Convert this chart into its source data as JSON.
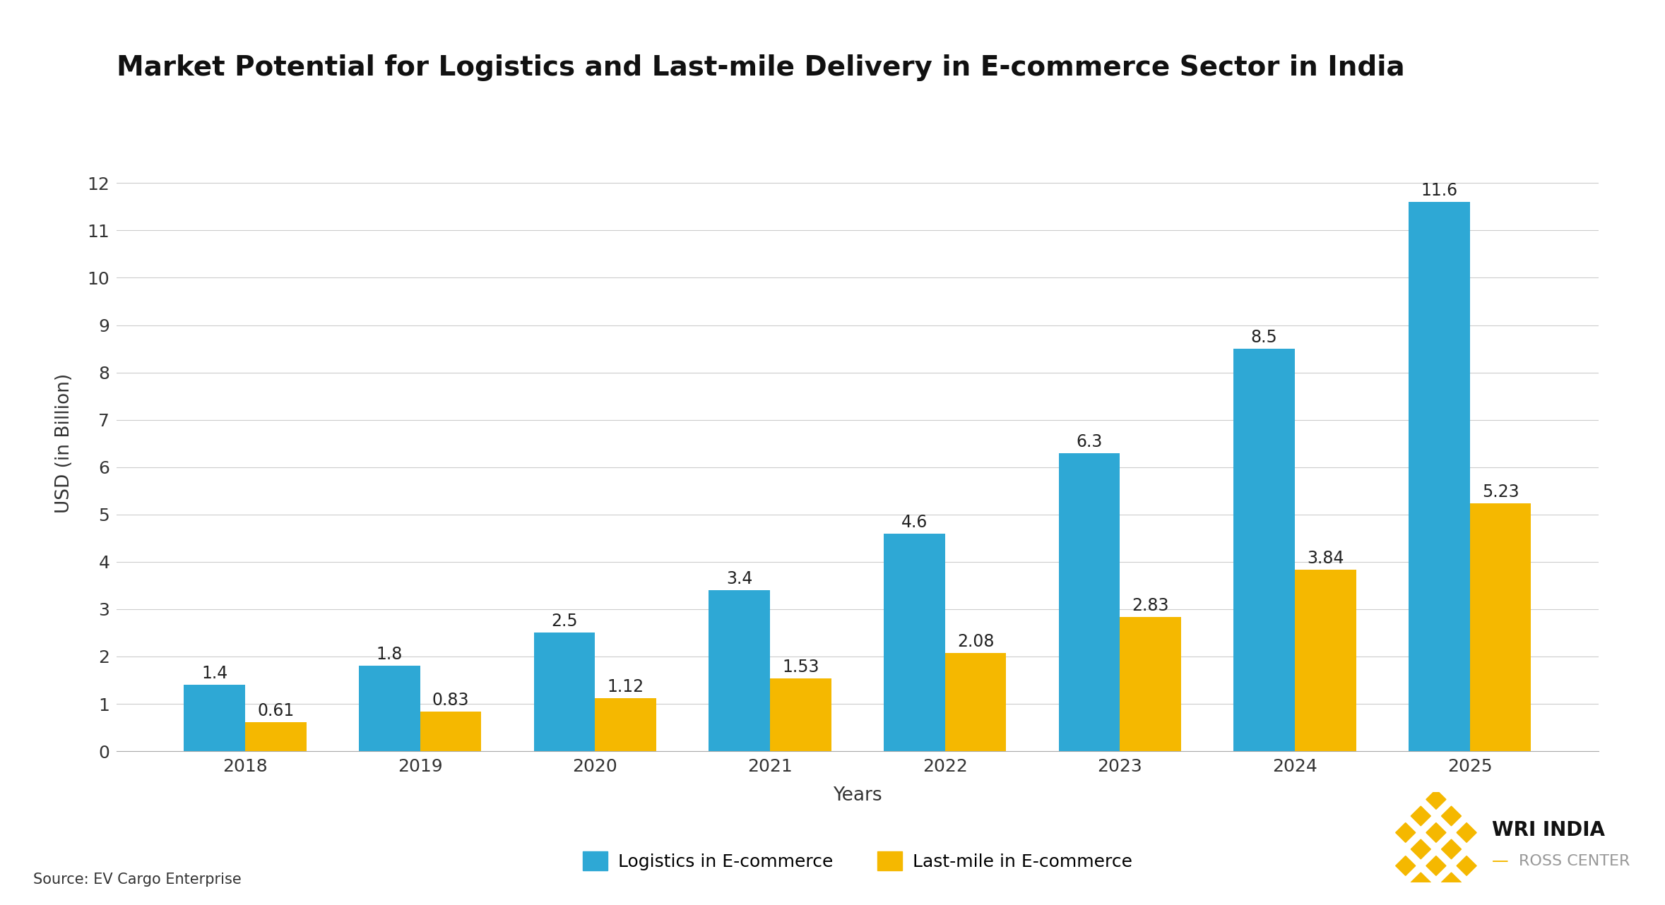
{
  "title": "Market Potential for Logistics and Last-mile Delivery in E-commerce Sector in India",
  "xlabel": "Years",
  "ylabel": "USD (in Billion)",
  "source": "Source: EV Cargo Enterprise",
  "years": [
    2018,
    2019,
    2020,
    2021,
    2022,
    2023,
    2024,
    2025
  ],
  "logistics": [
    1.4,
    1.8,
    2.5,
    3.4,
    4.6,
    6.3,
    8.5,
    11.6
  ],
  "lastmile": [
    0.61,
    0.83,
    1.12,
    1.53,
    2.08,
    2.83,
    3.84,
    5.23
  ],
  "bar_color_logistics": "#2EA8D5",
  "bar_color_lastmile": "#F5B800",
  "background_color": "#FFFFFF",
  "ylim": [
    0,
    13
  ],
  "yticks": [
    0,
    1,
    2,
    3,
    4,
    5,
    6,
    7,
    8,
    9,
    10,
    11,
    12
  ],
  "legend_logistics": "Logistics in E-commerce",
  "legend_lastmile": "Last-mile in E-commerce",
  "title_fontsize": 28,
  "label_fontsize": 19,
  "tick_fontsize": 18,
  "bar_label_fontsize": 17,
  "legend_fontsize": 18,
  "source_fontsize": 15,
  "bar_width": 0.35,
  "wri_text": "WRI INDIA",
  "ross_text": "ROSS CENTER",
  "gold": "#F5B800"
}
